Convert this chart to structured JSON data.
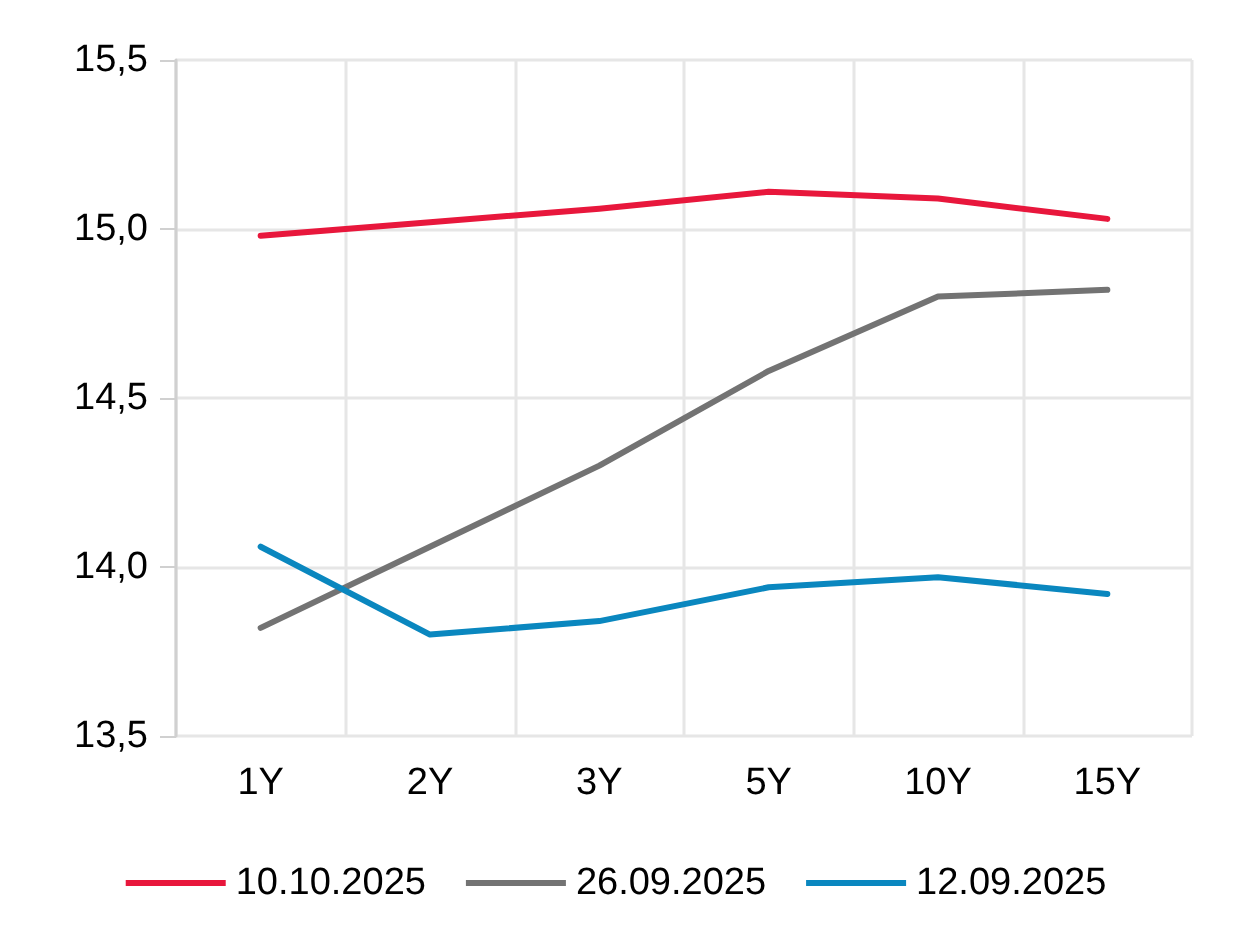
{
  "chart_data": {
    "type": "line",
    "categories": [
      "1Y",
      "2Y",
      "3Y",
      "5Y",
      "10Y",
      "15Y"
    ],
    "series": [
      {
        "name": "10.10.2025",
        "color": "#e8173c",
        "values": [
          14.98,
          15.02,
          15.06,
          15.11,
          15.09,
          15.03
        ]
      },
      {
        "name": "26.09.2025",
        "color": "#737373",
        "values": [
          13.82,
          14.06,
          14.3,
          14.58,
          14.8,
          14.82
        ]
      },
      {
        "name": "12.09.2025",
        "color": "#0a87bf",
        "values": [
          14.06,
          13.8,
          13.84,
          13.94,
          13.97,
          13.92
        ]
      }
    ],
    "ylim": [
      13.5,
      15.5
    ],
    "yticks": [
      {
        "value": 13.5,
        "label": "13,5"
      },
      {
        "value": 14,
        "label": "14,0"
      },
      {
        "value": 14.5,
        "label": "14,5"
      },
      {
        "value": 15,
        "label": "15,0"
      },
      {
        "value": 15.5,
        "label": "15,5"
      }
    ],
    "grid": true,
    "legend": "bottom",
    "marker": "none",
    "line_style": "solid"
  }
}
